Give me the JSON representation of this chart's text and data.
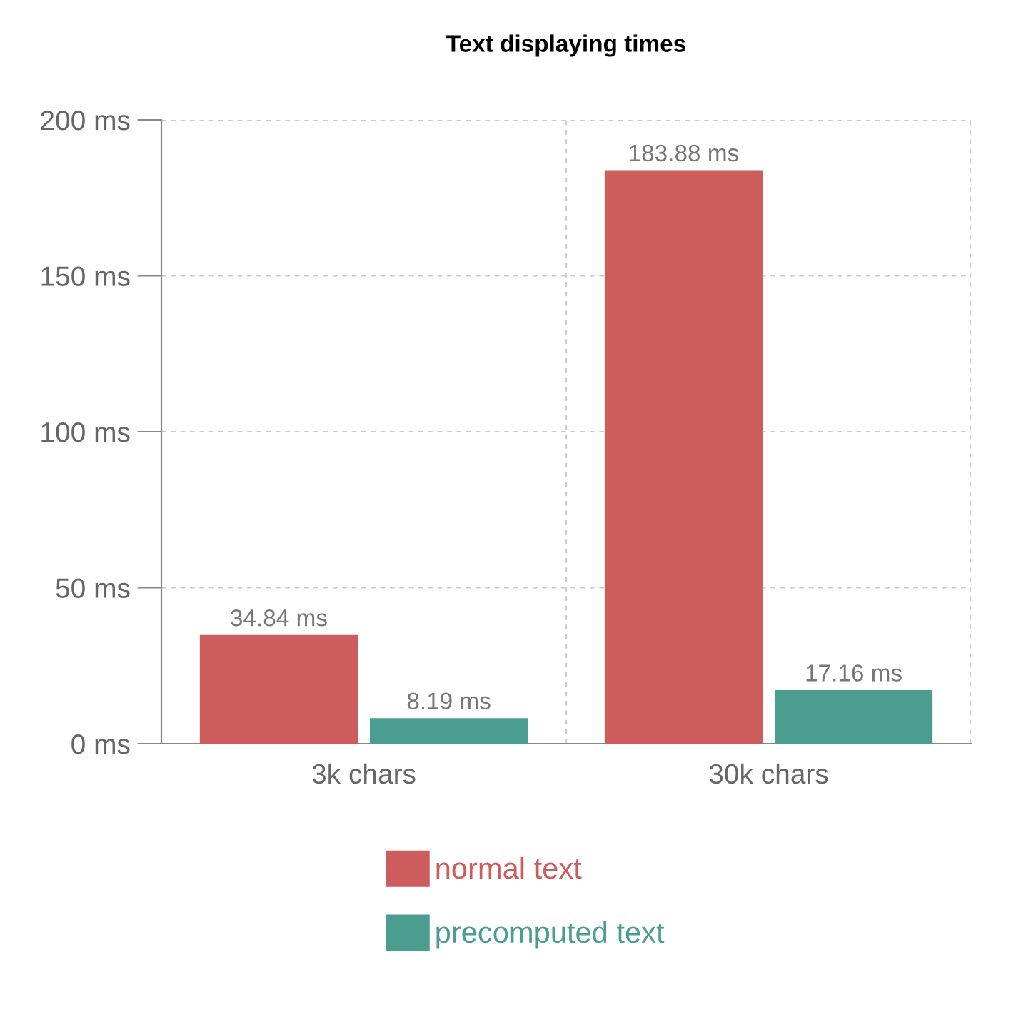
{
  "chart_data": {
    "type": "bar",
    "title": "Text displaying times",
    "categories": [
      "3k chars",
      "30k chars"
    ],
    "series": [
      {
        "name": "normal text",
        "color": "#cd5c5c",
        "values": [
          34.84,
          183.88
        ],
        "value_labels": [
          "34.84 ms",
          "183.88 ms"
        ]
      },
      {
        "name": "precomputed text",
        "color": "#4a9d8f",
        "values": [
          8.19,
          17.16
        ],
        "value_labels": [
          "8.19 ms",
          "17.16 ms"
        ]
      }
    ],
    "ylim": [
      0,
      200
    ],
    "yticks": [
      {
        "value": 0,
        "label": "0 ms"
      },
      {
        "value": 50,
        "label": "50 ms"
      },
      {
        "value": 100,
        "label": "100 ms"
      },
      {
        "value": 150,
        "label": "150 ms"
      },
      {
        "value": 200,
        "label": "200 ms"
      }
    ],
    "grid": true,
    "legend": "bottom"
  }
}
